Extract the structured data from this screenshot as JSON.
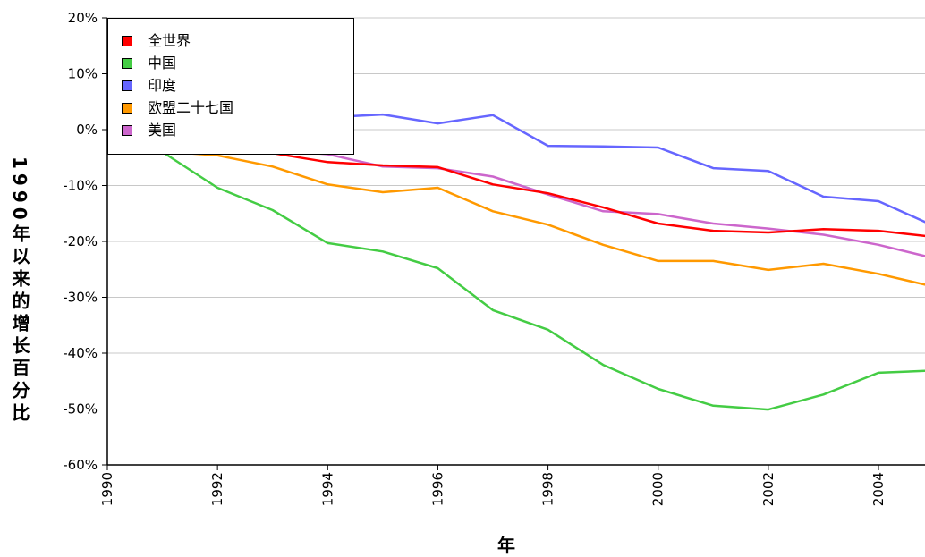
{
  "chart_data": {
    "type": "line",
    "xlabel": "年",
    "ylabel": "1990年以来的增长百分比",
    "x": [
      1990,
      1991,
      1992,
      1993,
      1994,
      1995,
      1996,
      1997,
      1998,
      1999,
      2000,
      2001,
      2002,
      2003,
      2004,
      2005
    ],
    "xlim": [
      1990,
      2005
    ],
    "ylim": [
      -60,
      20
    ],
    "x_ticks": [
      "1990",
      "1992",
      "1994",
      "1996",
      "1998",
      "2000",
      "2002",
      "2004"
    ],
    "y_ticks": [
      "20%",
      "10%",
      "0%",
      "-10%",
      "-20%",
      "-30%",
      "-40%",
      "-50%",
      "-60%"
    ],
    "grid": true,
    "legend_position": "top-left",
    "series": [
      {
        "name": "全世界",
        "color": "#ff0000",
        "values": [
          0,
          -1.0,
          -2.8,
          -4.2,
          -5.8,
          -6.4,
          -6.7,
          -9.8,
          -11.4,
          -13.9,
          -16.8,
          -18.1,
          -18.4,
          -17.8,
          -18.1,
          -19.2
        ]
      },
      {
        "name": "中国",
        "color": "#44cc44",
        "values": [
          0,
          -4.0,
          -10.4,
          -14.4,
          -20.3,
          -21.8,
          -24.8,
          -32.3,
          -35.8,
          -42.1,
          -46.4,
          -49.4,
          -50.1,
          -47.4,
          -43.5,
          -43.1
        ]
      },
      {
        "name": "印度",
        "color": "#6666ff",
        "values": [
          0,
          1.5,
          1.0,
          1.5,
          2.2,
          2.7,
          1.1,
          2.6,
          -2.9,
          -3.0,
          -3.2,
          -6.9,
          -7.4,
          -12.0,
          -12.8,
          -17.2
        ]
      },
      {
        "name": "欧盟二十七国",
        "color": "#ff9900",
        "values": [
          0,
          -3.9,
          -4.6,
          -6.6,
          -9.8,
          -11.2,
          -10.4,
          -14.6,
          -17.0,
          -20.6,
          -23.5,
          -23.5,
          -25.1,
          -24.0,
          -25.8,
          -28.1
        ]
      },
      {
        "name": "美国",
        "color": "#cc66cc",
        "values": [
          0,
          -1.5,
          -2.5,
          -3.6,
          -4.4,
          -6.6,
          -6.9,
          -8.4,
          -11.6,
          -14.6,
          -15.1,
          -16.8,
          -17.7,
          -18.8,
          -20.6,
          -23.0
        ]
      }
    ]
  }
}
